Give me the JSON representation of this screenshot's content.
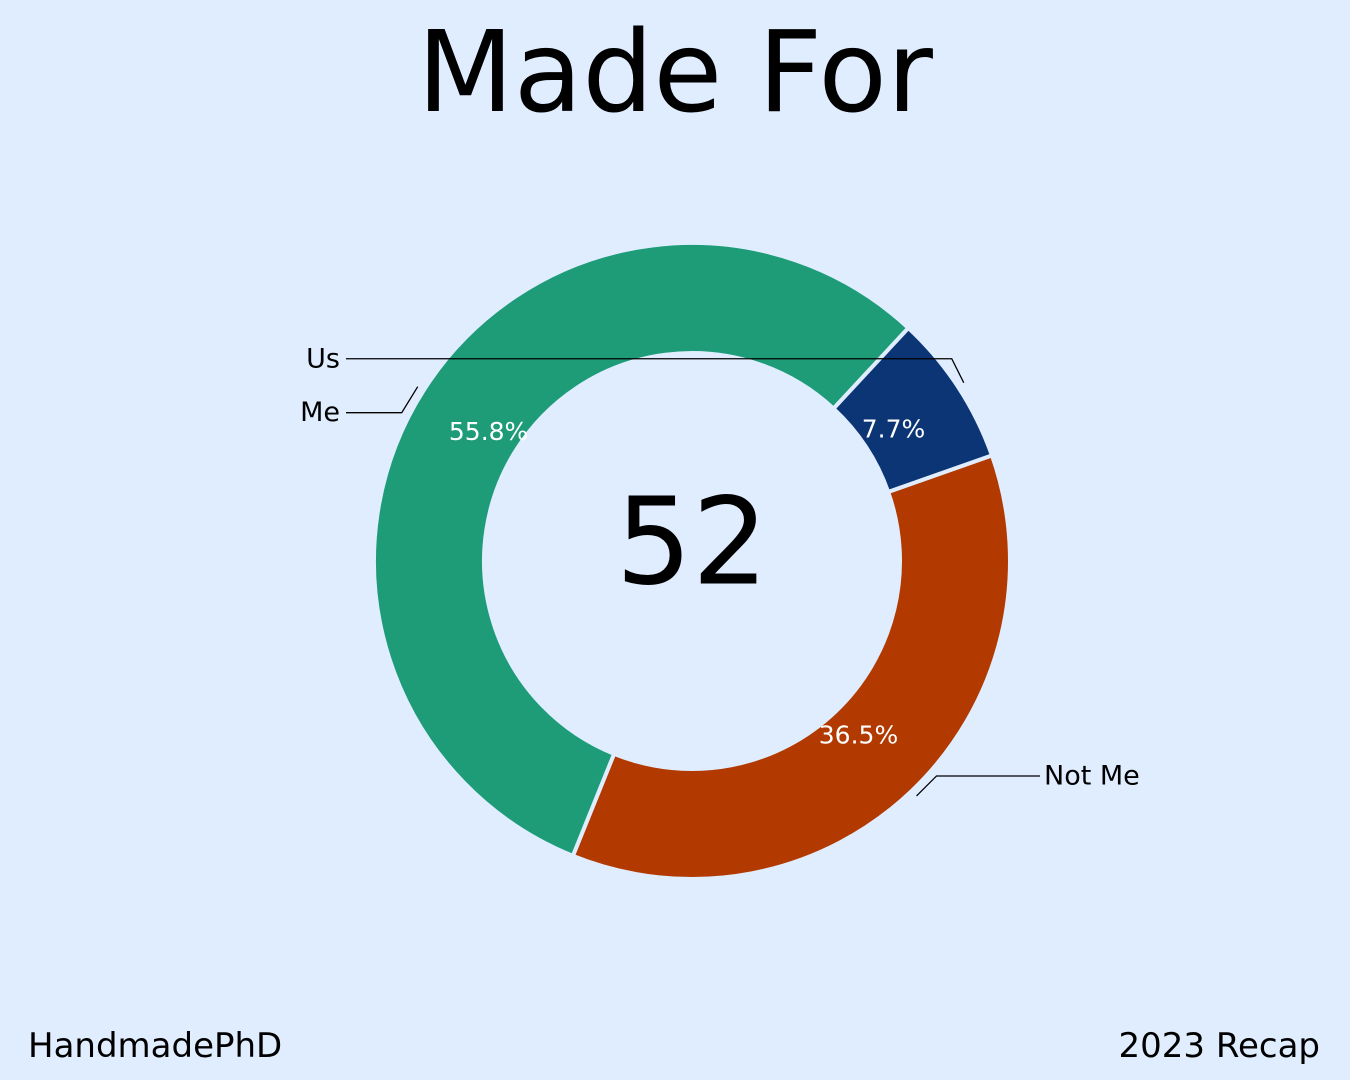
{
  "title": "Made For",
  "chart_data": {
    "type": "pie",
    "variant": "donut",
    "title": "Made For",
    "center_total": "52",
    "start_angle_deg": -19.4,
    "direction": "clockwise",
    "categories": [
      "Not Me",
      "Me",
      "Us"
    ],
    "values": [
      36.5,
      55.8,
      7.7
    ],
    "value_labels": [
      "36.5%",
      "55.8%",
      "7.7%"
    ],
    "colors": [
      "#b23a00",
      "#1e9c78",
      "#0b3575"
    ],
    "label_color": "#ffffff"
  },
  "footer": {
    "brand": "HandmadePhD",
    "recap": "2023 Recap"
  }
}
